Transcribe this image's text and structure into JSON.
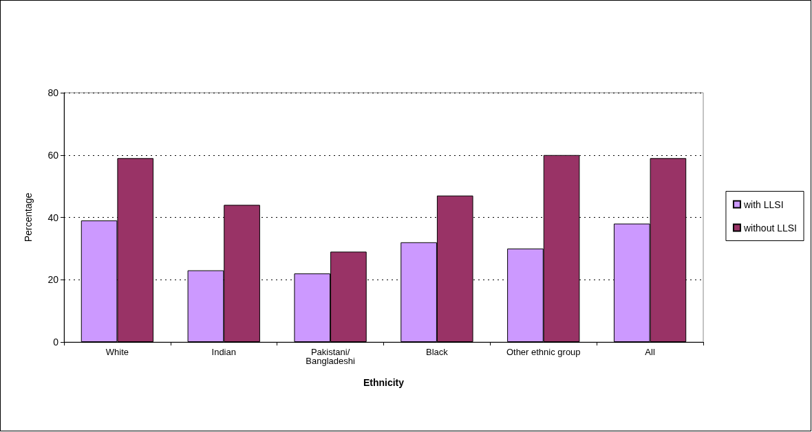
{
  "chart_data": {
    "type": "bar",
    "xlabel": "Ethnicity",
    "ylabel": "Percentage",
    "categories": [
      "White",
      "Indian",
      "Pakistani/\nBangladeshi",
      "Black",
      "Other ethnic group",
      "All"
    ],
    "series": [
      {
        "name": "with LLSI",
        "color": "#cc99ff",
        "values": [
          39,
          23,
          22,
          32,
          30,
          38
        ]
      },
      {
        "name": "without LLSI",
        "color": "#993366",
        "values": [
          59,
          44,
          29,
          47,
          60,
          59
        ]
      }
    ],
    "ylim": [
      0,
      80
    ],
    "yticks": [
      0,
      20,
      40,
      60,
      80
    ],
    "grid": "y",
    "legend": "right"
  }
}
